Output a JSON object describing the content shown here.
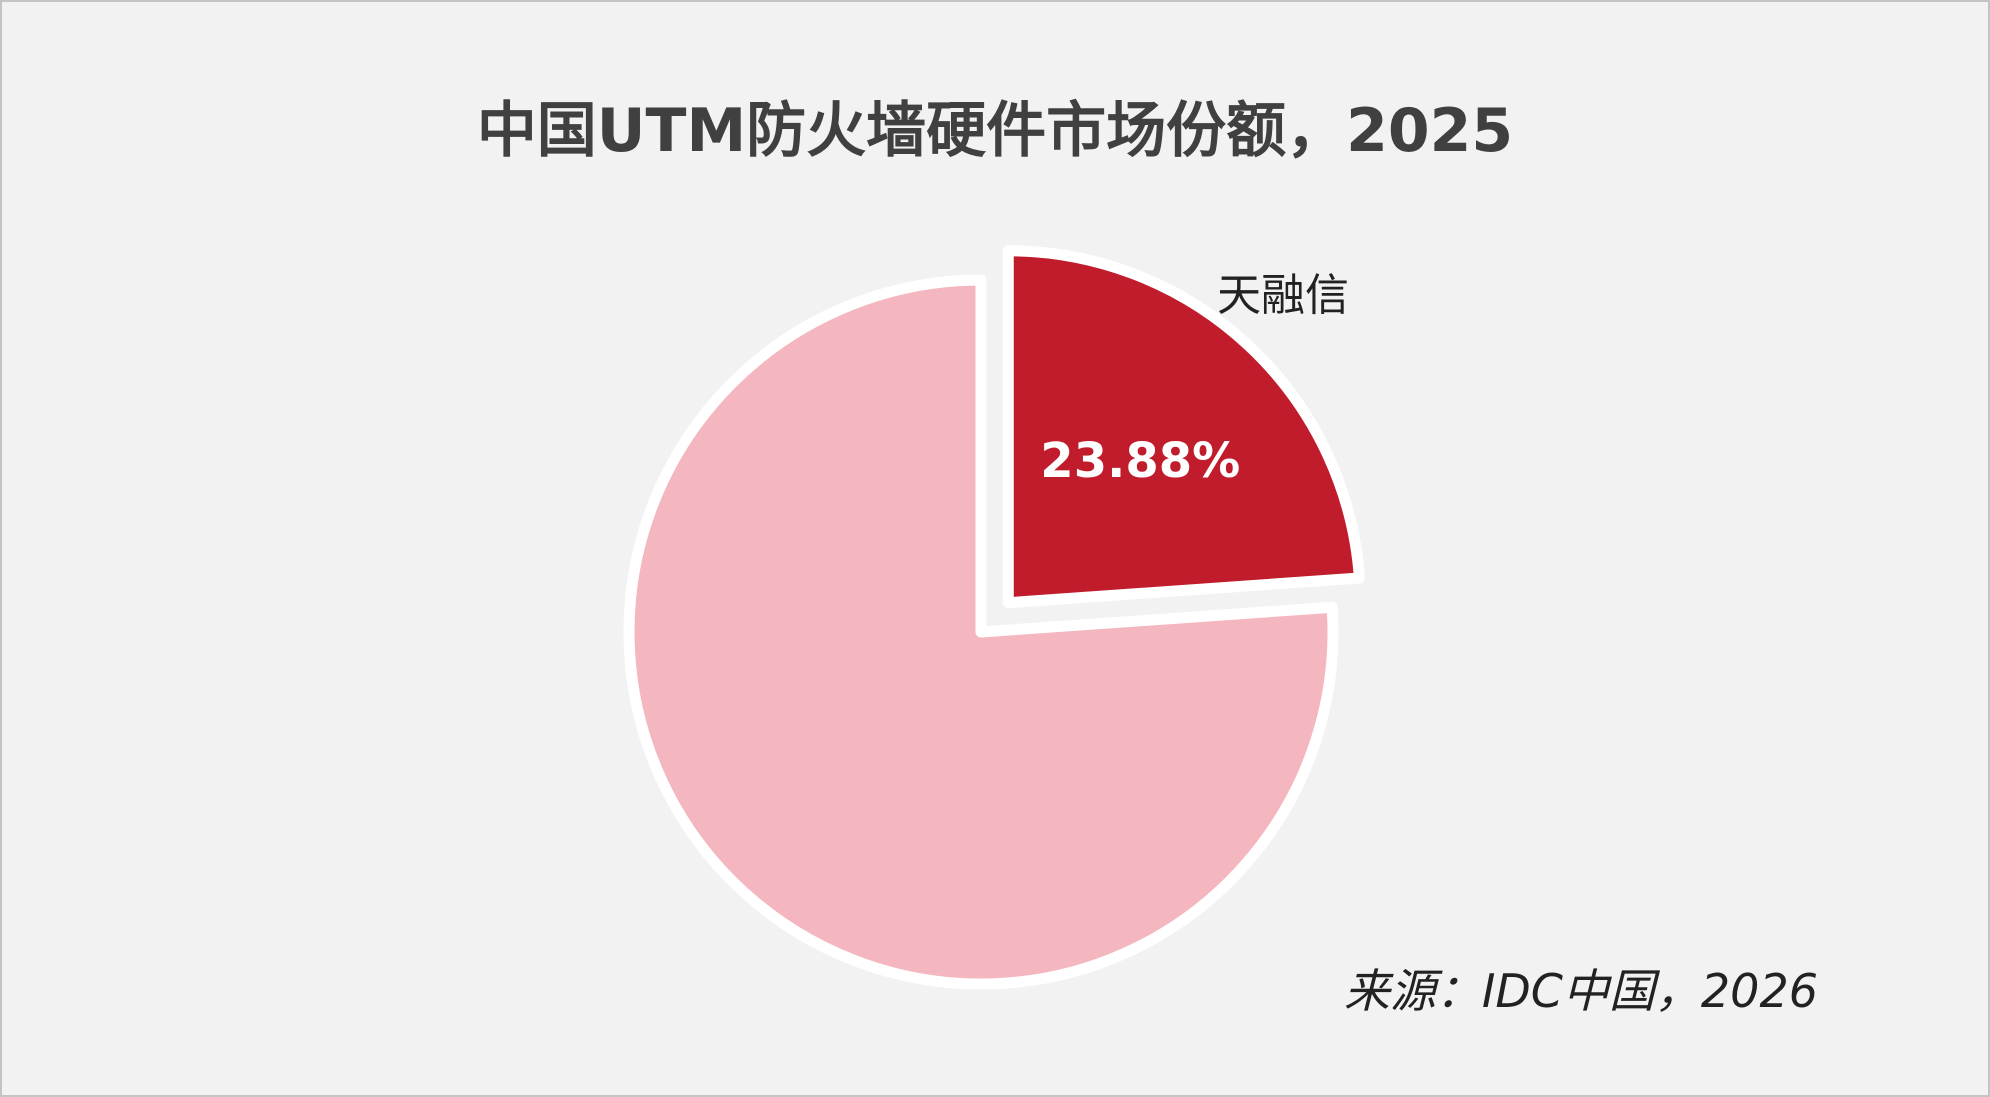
{
  "chart_data": {
    "type": "pie",
    "title": "中国UTM防火墙硬件市场份额，2025",
    "slices": [
      {
        "label": "天融信",
        "value": 23.88,
        "value_label": "23.88%",
        "color": "#C01C2C",
        "exploded": true
      },
      {
        "label": "",
        "value": 76.12,
        "value_label": "",
        "color": "#F4B6BF",
        "exploded": false
      }
    ],
    "start_angle": "12 o'clock",
    "direction": "clockwise",
    "legend": "none",
    "source": "来源：IDC中国，2026"
  },
  "colors": {
    "background": "#F2F2F2",
    "title": "#404040",
    "slice_border": "#FFFFFF"
  }
}
